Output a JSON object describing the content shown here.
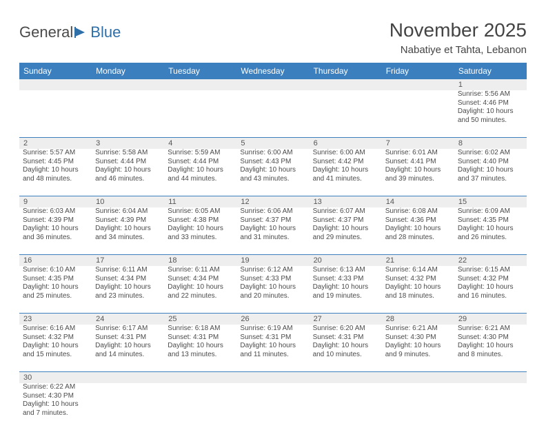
{
  "brand": {
    "name_a": "General",
    "name_b": "Blue"
  },
  "title": {
    "month": "November 2025",
    "location": "Nabatiye et Tahta, Lebanon"
  },
  "colors": {
    "header_bg": "#3b7fbf",
    "header_text": "#ffffff",
    "strip_bg": "#eeeeee",
    "border": "#3b7fbf"
  },
  "day_names": [
    "Sunday",
    "Monday",
    "Tuesday",
    "Wednesday",
    "Thursday",
    "Friday",
    "Saturday"
  ],
  "weeks": [
    [
      null,
      null,
      null,
      null,
      null,
      null,
      {
        "n": "1",
        "sr": "Sunrise: 5:56 AM",
        "ss": "Sunset: 4:46 PM",
        "dl": "Daylight: 10 hours and 50 minutes."
      }
    ],
    [
      {
        "n": "2",
        "sr": "Sunrise: 5:57 AM",
        "ss": "Sunset: 4:45 PM",
        "dl": "Daylight: 10 hours and 48 minutes."
      },
      {
        "n": "3",
        "sr": "Sunrise: 5:58 AM",
        "ss": "Sunset: 4:44 PM",
        "dl": "Daylight: 10 hours and 46 minutes."
      },
      {
        "n": "4",
        "sr": "Sunrise: 5:59 AM",
        "ss": "Sunset: 4:44 PM",
        "dl": "Daylight: 10 hours and 44 minutes."
      },
      {
        "n": "5",
        "sr": "Sunrise: 6:00 AM",
        "ss": "Sunset: 4:43 PM",
        "dl": "Daylight: 10 hours and 43 minutes."
      },
      {
        "n": "6",
        "sr": "Sunrise: 6:00 AM",
        "ss": "Sunset: 4:42 PM",
        "dl": "Daylight: 10 hours and 41 minutes."
      },
      {
        "n": "7",
        "sr": "Sunrise: 6:01 AM",
        "ss": "Sunset: 4:41 PM",
        "dl": "Daylight: 10 hours and 39 minutes."
      },
      {
        "n": "8",
        "sr": "Sunrise: 6:02 AM",
        "ss": "Sunset: 4:40 PM",
        "dl": "Daylight: 10 hours and 37 minutes."
      }
    ],
    [
      {
        "n": "9",
        "sr": "Sunrise: 6:03 AM",
        "ss": "Sunset: 4:39 PM",
        "dl": "Daylight: 10 hours and 36 minutes."
      },
      {
        "n": "10",
        "sr": "Sunrise: 6:04 AM",
        "ss": "Sunset: 4:39 PM",
        "dl": "Daylight: 10 hours and 34 minutes."
      },
      {
        "n": "11",
        "sr": "Sunrise: 6:05 AM",
        "ss": "Sunset: 4:38 PM",
        "dl": "Daylight: 10 hours and 33 minutes."
      },
      {
        "n": "12",
        "sr": "Sunrise: 6:06 AM",
        "ss": "Sunset: 4:37 PM",
        "dl": "Daylight: 10 hours and 31 minutes."
      },
      {
        "n": "13",
        "sr": "Sunrise: 6:07 AM",
        "ss": "Sunset: 4:37 PM",
        "dl": "Daylight: 10 hours and 29 minutes."
      },
      {
        "n": "14",
        "sr": "Sunrise: 6:08 AM",
        "ss": "Sunset: 4:36 PM",
        "dl": "Daylight: 10 hours and 28 minutes."
      },
      {
        "n": "15",
        "sr": "Sunrise: 6:09 AM",
        "ss": "Sunset: 4:35 PM",
        "dl": "Daylight: 10 hours and 26 minutes."
      }
    ],
    [
      {
        "n": "16",
        "sr": "Sunrise: 6:10 AM",
        "ss": "Sunset: 4:35 PM",
        "dl": "Daylight: 10 hours and 25 minutes."
      },
      {
        "n": "17",
        "sr": "Sunrise: 6:11 AM",
        "ss": "Sunset: 4:34 PM",
        "dl": "Daylight: 10 hours and 23 minutes."
      },
      {
        "n": "18",
        "sr": "Sunrise: 6:11 AM",
        "ss": "Sunset: 4:34 PM",
        "dl": "Daylight: 10 hours and 22 minutes."
      },
      {
        "n": "19",
        "sr": "Sunrise: 6:12 AM",
        "ss": "Sunset: 4:33 PM",
        "dl": "Daylight: 10 hours and 20 minutes."
      },
      {
        "n": "20",
        "sr": "Sunrise: 6:13 AM",
        "ss": "Sunset: 4:33 PM",
        "dl": "Daylight: 10 hours and 19 minutes."
      },
      {
        "n": "21",
        "sr": "Sunrise: 6:14 AM",
        "ss": "Sunset: 4:32 PM",
        "dl": "Daylight: 10 hours and 18 minutes."
      },
      {
        "n": "22",
        "sr": "Sunrise: 6:15 AM",
        "ss": "Sunset: 4:32 PM",
        "dl": "Daylight: 10 hours and 16 minutes."
      }
    ],
    [
      {
        "n": "23",
        "sr": "Sunrise: 6:16 AM",
        "ss": "Sunset: 4:32 PM",
        "dl": "Daylight: 10 hours and 15 minutes."
      },
      {
        "n": "24",
        "sr": "Sunrise: 6:17 AM",
        "ss": "Sunset: 4:31 PM",
        "dl": "Daylight: 10 hours and 14 minutes."
      },
      {
        "n": "25",
        "sr": "Sunrise: 6:18 AM",
        "ss": "Sunset: 4:31 PM",
        "dl": "Daylight: 10 hours and 13 minutes."
      },
      {
        "n": "26",
        "sr": "Sunrise: 6:19 AM",
        "ss": "Sunset: 4:31 PM",
        "dl": "Daylight: 10 hours and 11 minutes."
      },
      {
        "n": "27",
        "sr": "Sunrise: 6:20 AM",
        "ss": "Sunset: 4:31 PM",
        "dl": "Daylight: 10 hours and 10 minutes."
      },
      {
        "n": "28",
        "sr": "Sunrise: 6:21 AM",
        "ss": "Sunset: 4:30 PM",
        "dl": "Daylight: 10 hours and 9 minutes."
      },
      {
        "n": "29",
        "sr": "Sunrise: 6:21 AM",
        "ss": "Sunset: 4:30 PM",
        "dl": "Daylight: 10 hours and 8 minutes."
      }
    ],
    [
      {
        "n": "30",
        "sr": "Sunrise: 6:22 AM",
        "ss": "Sunset: 4:30 PM",
        "dl": "Daylight: 10 hours and 7 minutes."
      },
      null,
      null,
      null,
      null,
      null,
      null
    ]
  ]
}
